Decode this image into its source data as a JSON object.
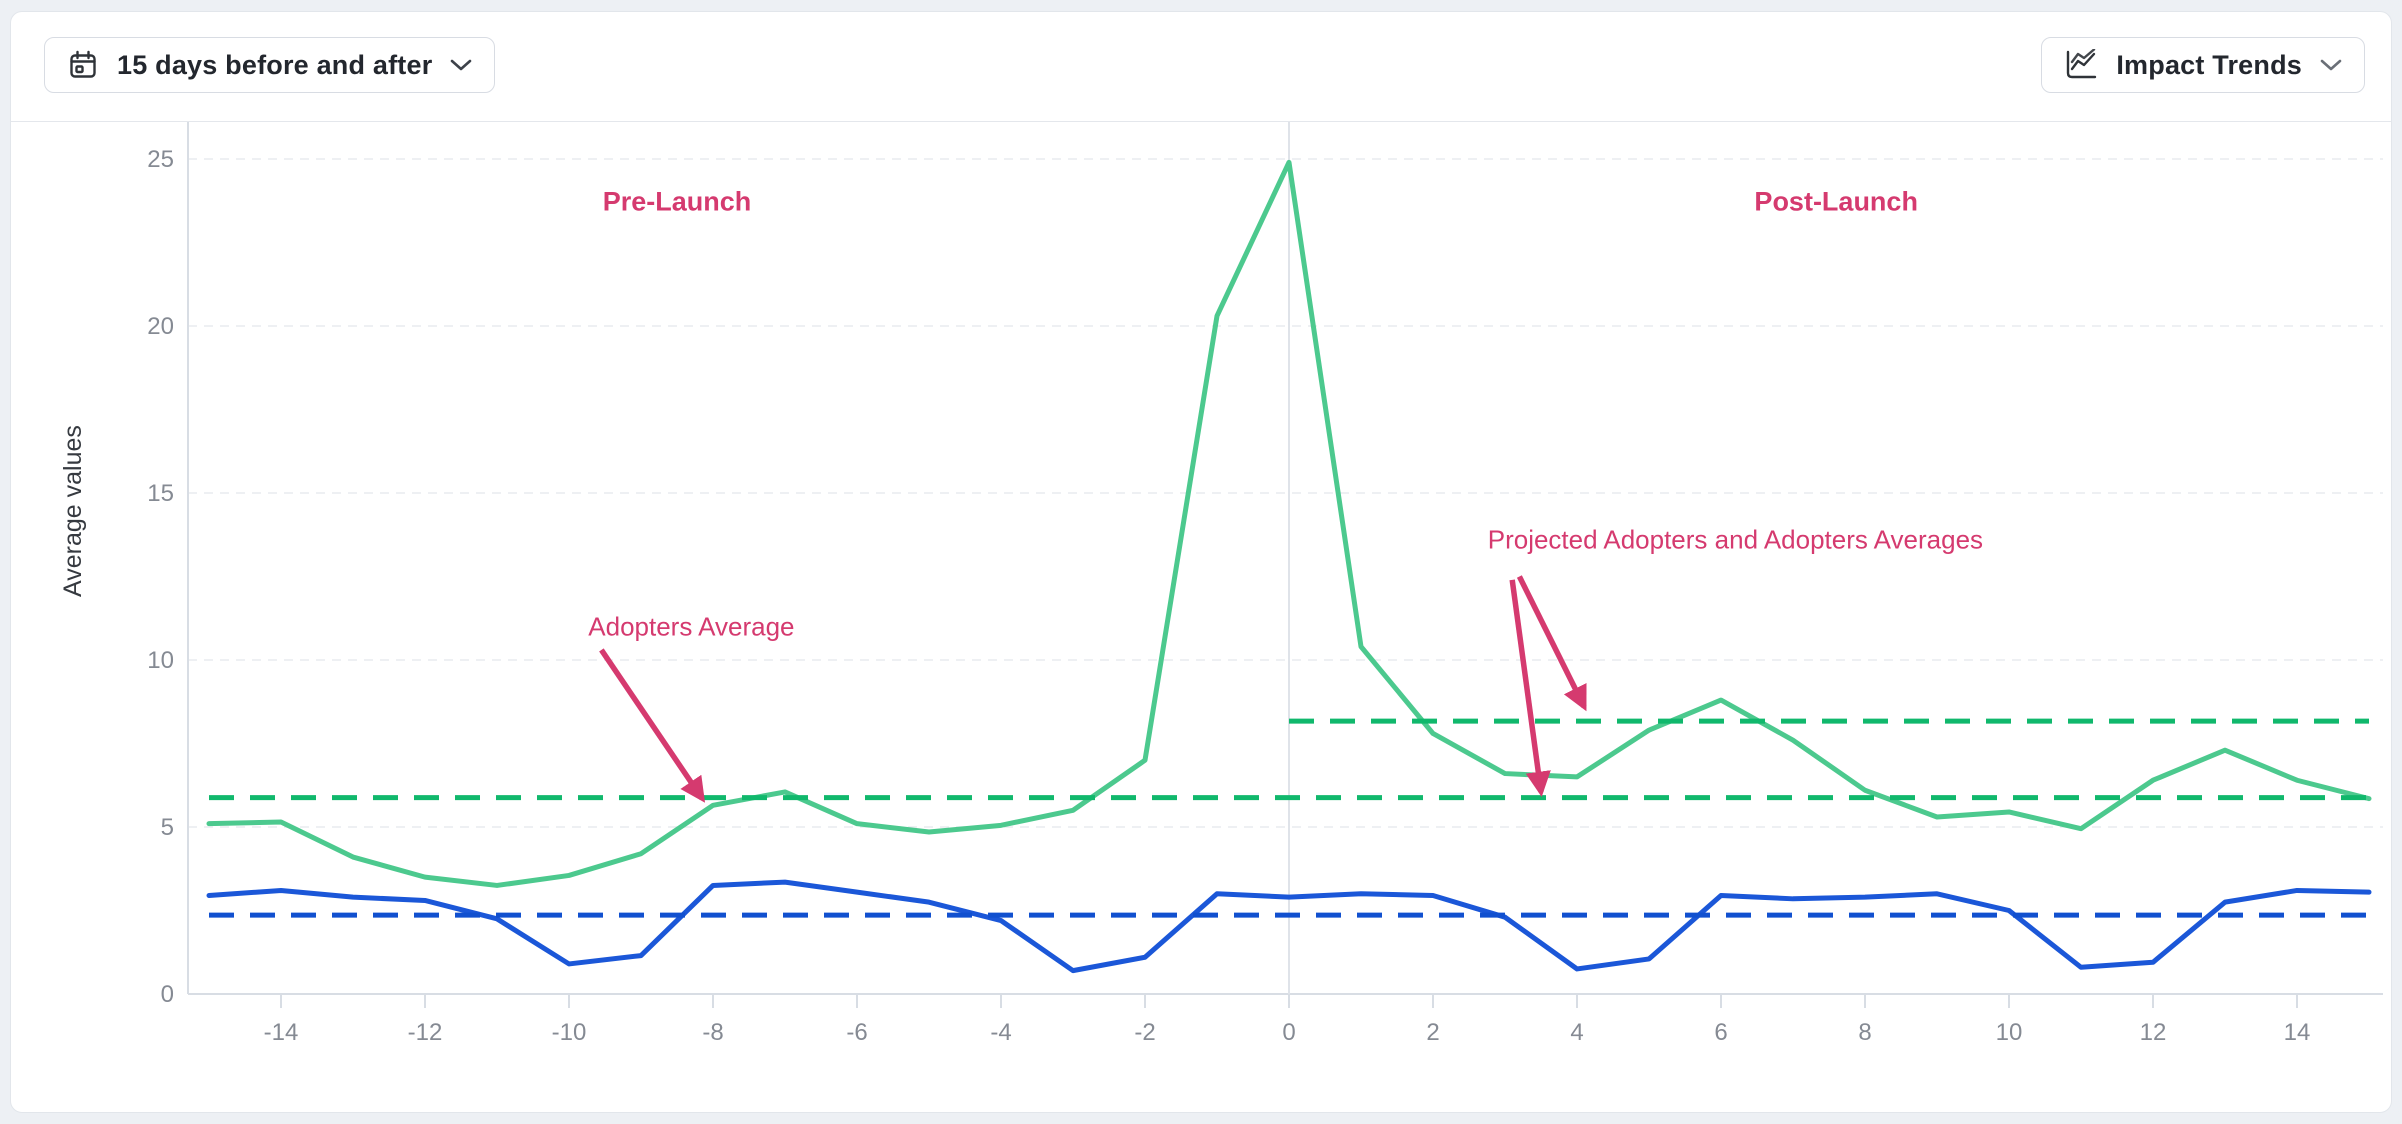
{
  "toolbar": {
    "date_range": {
      "label": "15 days before and after",
      "icon": "calendar-icon"
    },
    "metric": {
      "label": "Impact Trends",
      "icon": "trend-chart-icon"
    }
  },
  "colors": {
    "accent_pink": "#d53a6f",
    "adopters_line_green": "#4cc98e",
    "adopters_average_green": "#10b86c",
    "blue_line": "#1b57d8",
    "blue_average": "#1150cf",
    "grid": "#e8ebef",
    "axis": "#d8dde4",
    "zero_line": "#dfe3e9",
    "tick_text": "#858a93"
  },
  "chart_data": {
    "type": "line",
    "title": "",
    "ylabel": "Average values",
    "xlabel": "",
    "xlim": [
      -15.4,
      15.2
    ],
    "ylim": [
      0,
      27
    ],
    "grid": "horizontal-dashed",
    "legend": "none",
    "x_ticks": [
      -14,
      -12,
      -10,
      -8,
      -6,
      -4,
      -2,
      0,
      2,
      4,
      6,
      8,
      10,
      12,
      14
    ],
    "y_ticks": [
      0,
      5,
      10,
      15,
      20,
      25
    ],
    "x": [
      -15,
      -14,
      -13,
      -12,
      -11,
      -10,
      -9,
      -8,
      -7,
      -6,
      -5,
      -4,
      -3,
      -2,
      -1,
      0,
      1,
      2,
      3,
      4,
      5,
      6,
      7,
      8,
      9,
      10,
      11,
      12,
      13,
      14,
      15
    ],
    "series": [
      {
        "id": "adopters",
        "name": "Adopters",
        "style": "solid",
        "color_key": "adopters_line_green",
        "values": [
          5.1,
          5.15,
          4.1,
          3.5,
          3.25,
          3.55,
          4.2,
          5.65,
          6.05,
          5.1,
          4.85,
          5.05,
          5.5,
          7.0,
          20.3,
          24.9,
          10.4,
          7.8,
          6.6,
          6.5,
          7.9,
          8.8,
          7.6,
          6.1,
          5.3,
          5.45,
          4.95,
          6.4,
          7.3,
          6.4,
          5.85
        ]
      },
      {
        "id": "unlabeled-blue",
        "name": "",
        "style": "solid",
        "color_key": "blue_line",
        "values": [
          2.95,
          3.1,
          2.9,
          2.8,
          2.25,
          0.9,
          1.15,
          3.25,
          3.35,
          3.05,
          2.75,
          2.2,
          0.7,
          1.1,
          3.0,
          2.9,
          3.0,
          2.95,
          2.3,
          0.75,
          1.05,
          2.95,
          2.85,
          2.9,
          3.0,
          2.5,
          0.8,
          0.95,
          2.75,
          3.1,
          3.05
        ]
      }
    ],
    "reference_lines": [
      {
        "id": "adopters-average",
        "value": 5.88,
        "span": [
          -15,
          15
        ],
        "style": "dashed",
        "color_key": "adopters_average_green"
      },
      {
        "id": "adopters-post-average",
        "value": 8.17,
        "span": [
          0,
          15
        ],
        "style": "dashed",
        "color_key": "adopters_average_green"
      },
      {
        "id": "blue-average",
        "value": 2.36,
        "span": [
          -15,
          15
        ],
        "style": "dashed",
        "color_key": "blue_average"
      }
    ],
    "annotations": [
      {
        "id": "pre-launch-label",
        "text": "Pre-Launch",
        "bold": true,
        "day": -8.5,
        "value": 23.7,
        "arrows": []
      },
      {
        "id": "post-launch-label",
        "text": "Post-Launch",
        "bold": true,
        "day": 7.6,
        "value": 23.7,
        "arrows": []
      },
      {
        "id": "adopters-average-label",
        "text": "Adopters Average",
        "bold": false,
        "day": -8.3,
        "value": 11.0,
        "arrows": [
          {
            "from": {
              "day": -9.55,
              "value": 10.3
            },
            "to": {
              "day": -8.15,
              "value": 5.85
            }
          }
        ]
      },
      {
        "id": "projected-averages-label",
        "text": "Projected Adopters and Adopters Averages",
        "bold": false,
        "day": 6.2,
        "value": 13.6,
        "arrows": [
          {
            "from": {
              "day": 3.2,
              "value": 12.5
            },
            "to": {
              "day": 4.1,
              "value": 8.6
            }
          },
          {
            "from": {
              "day": 3.1,
              "value": 12.4
            },
            "to": {
              "day": 3.5,
              "value": 6.05
            }
          }
        ]
      }
    ]
  }
}
